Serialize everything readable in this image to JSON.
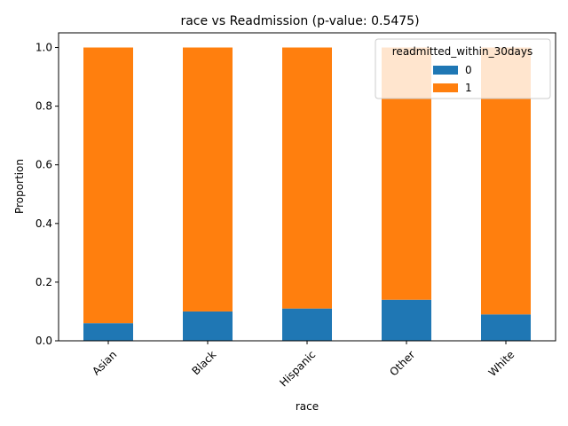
{
  "chart_data": {
    "type": "bar",
    "stacked": true,
    "title": "race vs Readmission (p-value: 0.5475)",
    "xlabel": "race",
    "ylabel": "Proportion",
    "categories": [
      "Asian",
      "Black",
      "Hispanic",
      "Other",
      "White"
    ],
    "ylim": [
      0,
      1.05
    ],
    "yticks": [
      "0.0",
      "0.2",
      "0.4",
      "0.6",
      "0.8",
      "1.0"
    ],
    "xtick_rotation": "45 degrees",
    "legend": {
      "title": "readmitted_within_30days",
      "placement": "top-right"
    },
    "series": [
      {
        "name": "0",
        "color": "#1f77b4",
        "values": [
          0.06,
          0.1,
          0.11,
          0.14,
          0.09
        ]
      },
      {
        "name": "1",
        "color": "#ff7f0e",
        "values": [
          0.94,
          0.9,
          0.89,
          0.86,
          0.91
        ]
      }
    ],
    "grid": false
  }
}
